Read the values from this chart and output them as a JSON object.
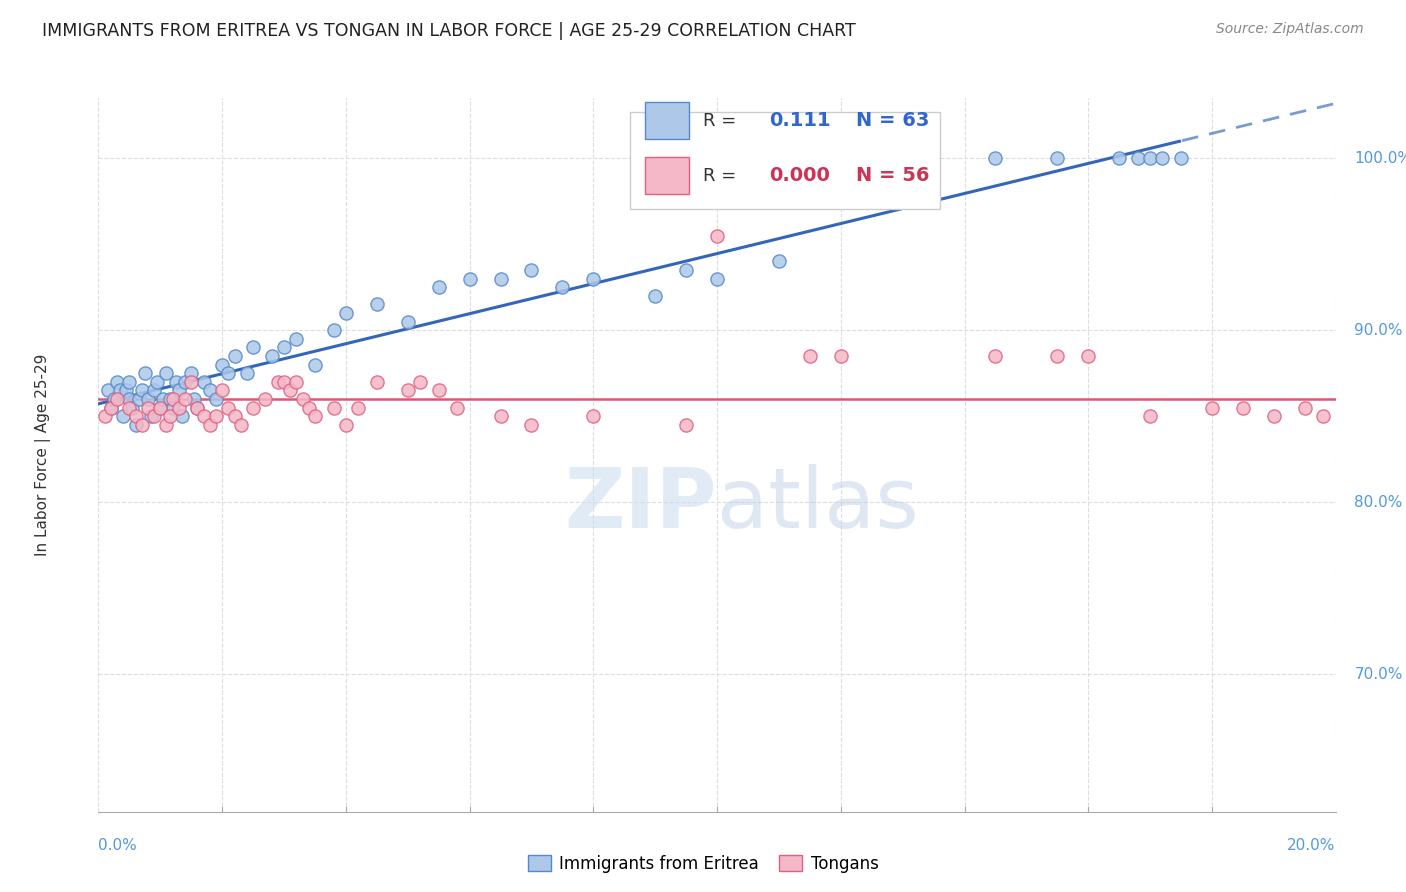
{
  "title": "IMMIGRANTS FROM ERITREA VS TONGAN IN LABOR FORCE | AGE 25-29 CORRELATION CHART",
  "source": "Source: ZipAtlas.com",
  "ylabel": "In Labor Force | Age 25-29",
  "xmin": 0.0,
  "xmax": 20.0,
  "ymin": 62.0,
  "ymax": 103.5,
  "ytick_positions": [
    70.0,
    80.0,
    90.0,
    100.0
  ],
  "color_eritrea_fill": "#adc8e8",
  "color_eritrea_edge": "#5588cc",
  "color_tongan_fill": "#f5b8c8",
  "color_tongan_edge": "#e06080",
  "color_eritrea_line": "#3366bb",
  "color_tongan_line": "#e05575",
  "color_grid": "#dddddd",
  "color_right_labels": "#5599dd",
  "watermark_color": "#dce8f5",
  "eritrea_x": [
    0.15,
    0.2,
    0.25,
    0.3,
    0.35,
    0.4,
    0.45,
    0.5,
    0.5,
    0.55,
    0.6,
    0.65,
    0.7,
    0.75,
    0.8,
    0.85,
    0.9,
    0.95,
    1.0,
    1.05,
    1.1,
    1.15,
    1.2,
    1.25,
    1.3,
    1.35,
    1.4,
    1.5,
    1.55,
    1.6,
    1.7,
    1.8,
    1.9,
    2.0,
    2.1,
    2.2,
    2.4,
    2.5,
    2.8,
    3.0,
    3.2,
    3.5,
    3.8,
    4.0,
    4.5,
    5.0,
    5.5,
    6.0,
    6.5,
    7.0,
    7.5,
    8.0,
    9.0,
    9.5,
    10.0,
    11.0,
    14.5,
    15.5,
    16.5,
    16.8,
    17.0,
    17.2,
    17.5
  ],
  "eritrea_y": [
    86.5,
    85.5,
    86.0,
    87.0,
    86.5,
    85.0,
    86.5,
    87.0,
    86.0,
    85.5,
    84.5,
    86.0,
    86.5,
    87.5,
    86.0,
    85.0,
    86.5,
    87.0,
    85.5,
    86.0,
    87.5,
    86.0,
    85.5,
    87.0,
    86.5,
    85.0,
    87.0,
    87.5,
    86.0,
    85.5,
    87.0,
    86.5,
    86.0,
    88.0,
    87.5,
    88.5,
    87.5,
    89.0,
    88.5,
    89.0,
    89.5,
    88.0,
    90.0,
    91.0,
    91.5,
    90.5,
    92.5,
    93.0,
    93.0,
    93.5,
    92.5,
    93.0,
    92.0,
    93.5,
    93.0,
    94.0,
    100.0,
    100.0,
    100.0,
    100.0,
    100.0,
    100.0,
    100.0
  ],
  "tongan_x": [
    0.1,
    0.2,
    0.3,
    0.5,
    0.6,
    0.7,
    0.8,
    0.9,
    1.0,
    1.1,
    1.15,
    1.2,
    1.3,
    1.4,
    1.5,
    1.6,
    1.7,
    1.8,
    1.9,
    2.0,
    2.1,
    2.2,
    2.3,
    2.5,
    2.7,
    2.9,
    3.0,
    3.1,
    3.2,
    3.3,
    3.4,
    3.5,
    3.8,
    4.0,
    4.2,
    4.5,
    5.0,
    5.2,
    5.5,
    5.8,
    6.5,
    7.0,
    8.0,
    9.5,
    10.0,
    11.5,
    12.0,
    14.5,
    15.5,
    16.0,
    17.0,
    18.0,
    18.5,
    19.0,
    19.5,
    19.8
  ],
  "tongan_y": [
    85.0,
    85.5,
    86.0,
    85.5,
    85.0,
    84.5,
    85.5,
    85.0,
    85.5,
    84.5,
    85.0,
    86.0,
    85.5,
    86.0,
    87.0,
    85.5,
    85.0,
    84.5,
    85.0,
    86.5,
    85.5,
    85.0,
    84.5,
    85.5,
    86.0,
    87.0,
    87.0,
    86.5,
    87.0,
    86.0,
    85.5,
    85.0,
    85.5,
    84.5,
    85.5,
    87.0,
    86.5,
    87.0,
    86.5,
    85.5,
    85.0,
    84.5,
    85.0,
    84.5,
    95.5,
    88.5,
    88.5,
    88.5,
    88.5,
    88.5,
    85.0,
    85.5,
    85.5,
    85.0,
    85.5,
    85.0
  ]
}
